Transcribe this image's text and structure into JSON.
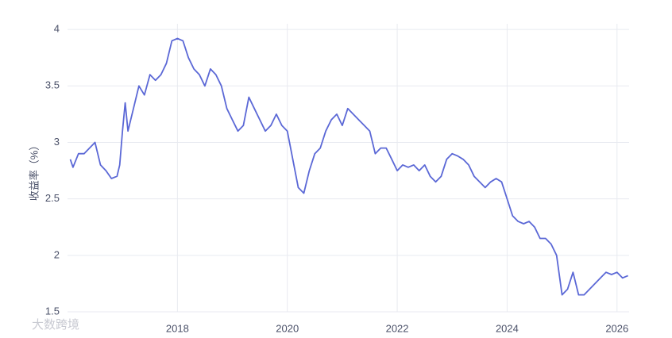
{
  "chart_data": {
    "type": "line",
    "y_label": "收益率（%）",
    "watermark": "大数跨境",
    "x": [
      2016.05,
      2016.1,
      2016.2,
      2016.3,
      2016.4,
      2016.5,
      2016.6,
      2016.7,
      2016.8,
      2016.9,
      2016.95,
      2017.0,
      2017.05,
      2017.1,
      2017.2,
      2017.3,
      2017.4,
      2017.5,
      2017.6,
      2017.7,
      2017.8,
      2017.9,
      2018.0,
      2018.1,
      2018.2,
      2018.3,
      2018.4,
      2018.5,
      2018.6,
      2018.7,
      2018.8,
      2018.9,
      2019.0,
      2019.1,
      2019.2,
      2019.3,
      2019.4,
      2019.5,
      2019.6,
      2019.7,
      2019.8,
      2019.9,
      2020.0,
      2020.1,
      2020.2,
      2020.3,
      2020.4,
      2020.5,
      2020.6,
      2020.7,
      2020.8,
      2020.9,
      2021.0,
      2021.1,
      2021.2,
      2021.3,
      2021.4,
      2021.5,
      2021.6,
      2021.7,
      2021.8,
      2021.9,
      2022.0,
      2022.1,
      2022.2,
      2022.3,
      2022.4,
      2022.5,
      2022.6,
      2022.7,
      2022.8,
      2022.9,
      2023.0,
      2023.1,
      2023.2,
      2023.3,
      2023.4,
      2023.5,
      2023.6,
      2023.7,
      2023.8,
      2023.9,
      2024.0,
      2024.1,
      2024.2,
      2024.3,
      2024.4,
      2024.5,
      2024.6,
      2024.7,
      2024.8,
      2024.9,
      2025.0,
      2025.1,
      2025.2,
      2025.3,
      2025.4,
      2025.5,
      2025.6,
      2025.7,
      2025.8,
      2025.9,
      2026.0,
      2026.1,
      2026.2
    ],
    "series": [
      {
        "name": "收益率",
        "color": "#5b68d6",
        "values": [
          2.85,
          2.78,
          2.9,
          2.9,
          2.95,
          3.0,
          2.8,
          2.75,
          2.68,
          2.7,
          2.8,
          3.1,
          3.35,
          3.1,
          3.3,
          3.5,
          3.42,
          3.6,
          3.55,
          3.6,
          3.7,
          3.9,
          3.92,
          3.9,
          3.75,
          3.65,
          3.6,
          3.5,
          3.65,
          3.6,
          3.5,
          3.3,
          3.2,
          3.1,
          3.15,
          3.4,
          3.3,
          3.2,
          3.1,
          3.15,
          3.25,
          3.15,
          3.1,
          2.85,
          2.6,
          2.55,
          2.75,
          2.9,
          2.95,
          3.1,
          3.2,
          3.25,
          3.15,
          3.3,
          3.25,
          3.2,
          3.15,
          3.1,
          2.9,
          2.95,
          2.95,
          2.85,
          2.75,
          2.8,
          2.78,
          2.8,
          2.75,
          2.8,
          2.7,
          2.65,
          2.7,
          2.85,
          2.9,
          2.88,
          2.85,
          2.8,
          2.7,
          2.65,
          2.6,
          2.65,
          2.68,
          2.65,
          2.5,
          2.35,
          2.3,
          2.28,
          2.3,
          2.25,
          2.15,
          2.15,
          2.1,
          2.0,
          1.65,
          1.7,
          1.85,
          1.65,
          1.65,
          1.7,
          1.75,
          1.8,
          1.85,
          1.83,
          1.85,
          1.8,
          1.82
        ]
      }
    ],
    "xlim": [
      2016.0,
      2026.22
    ],
    "xticks": [
      2018,
      2020,
      2022,
      2024,
      2026
    ],
    "ylim": [
      1.5,
      4.05
    ],
    "yticks": [
      1.5,
      2,
      2.5,
      3,
      3.5,
      4
    ],
    "grid": true
  }
}
